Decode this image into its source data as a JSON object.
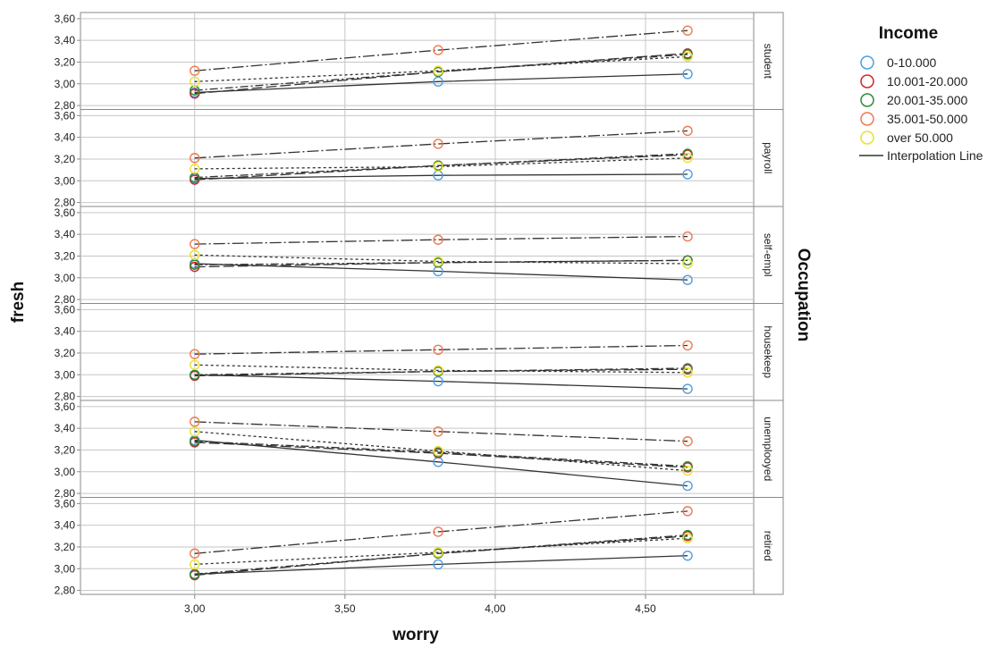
{
  "chart_data": {
    "type": "line",
    "xlabel": "worry",
    "ylabel": "fresh",
    "facet_label": "Occupation",
    "x": [
      3.0,
      3.81,
      4.64
    ],
    "x_ticks": [
      "3,00",
      "3,50",
      "4,00",
      "4,50"
    ],
    "x_tick_values": [
      3.0,
      3.5,
      4.0,
      4.5
    ],
    "xlim": [
      2.62,
      4.86
    ],
    "y_ticks": [
      "2,80",
      "3,00",
      "3,20",
      "3,40",
      "3,60"
    ],
    "y_tick_values": [
      2.8,
      3.0,
      3.2,
      3.4,
      3.6
    ],
    "ylim": [
      2.78,
      3.64
    ],
    "grid": true,
    "legend": {
      "title": "Income",
      "position": "right",
      "entries": [
        "0-10.000",
        "10.001-20.000",
        "20.001-35.000",
        "35.001-50.000",
        "over 50.000"
      ],
      "line_label": "Interpolation Line"
    },
    "panels": [
      {
        "label": "student",
        "series": [
          {
            "name": "0-10.000",
            "values": [
              2.92,
              3.02,
              3.09
            ]
          },
          {
            "name": "10.001-20.000",
            "values": [
              2.91,
              3.11,
              3.28
            ]
          },
          {
            "name": "20.001-35.000",
            "values": [
              2.94,
              3.11,
              3.27
            ]
          },
          {
            "name": "35.001-50.000",
            "values": [
              3.12,
              3.31,
              3.49
            ]
          },
          {
            "name": "over 50.000",
            "values": [
              3.02,
              3.12,
              3.25
            ]
          }
        ]
      },
      {
        "label": "payroll",
        "series": [
          {
            "name": "0-10.000",
            "values": [
              3.02,
              3.05,
              3.06
            ]
          },
          {
            "name": "10.001-20.000",
            "values": [
              3.01,
              3.14,
              3.24
            ]
          },
          {
            "name": "20.001-35.000",
            "values": [
              3.03,
              3.14,
              3.25
            ]
          },
          {
            "name": "35.001-50.000",
            "values": [
              3.21,
              3.34,
              3.46
            ]
          },
          {
            "name": "over 50.000",
            "values": [
              3.11,
              3.13,
              3.21
            ]
          }
        ]
      },
      {
        "label": "self-empl",
        "series": [
          {
            "name": "0-10.000",
            "values": [
              3.13,
              3.06,
              2.98
            ]
          },
          {
            "name": "10.001-20.000",
            "values": [
              3.1,
              3.14,
              3.16
            ]
          },
          {
            "name": "20.001-35.000",
            "values": [
              3.12,
              3.14,
              3.16
            ]
          },
          {
            "name": "35.001-50.000",
            "values": [
              3.31,
              3.35,
              3.38
            ]
          },
          {
            "name": "over 50.000",
            "values": [
              3.21,
              3.15,
              3.13
            ]
          }
        ]
      },
      {
        "label": "housekeep",
        "series": [
          {
            "name": "0-10.000",
            "values": [
              3.0,
              2.94,
              2.87
            ]
          },
          {
            "name": "10.001-20.000",
            "values": [
              2.99,
              3.03,
              3.05
            ]
          },
          {
            "name": "20.001-35.000",
            "values": [
              3.0,
              3.03,
              3.06
            ]
          },
          {
            "name": "35.001-50.000",
            "values": [
              3.19,
              3.23,
              3.27
            ]
          },
          {
            "name": "over 50.000",
            "values": [
              3.09,
              3.04,
              3.02
            ]
          }
        ]
      },
      {
        "label": "unemplooyed",
        "series": [
          {
            "name": "0-10.000",
            "values": [
              3.29,
              3.09,
              2.87
            ]
          },
          {
            "name": "10.001-20.000",
            "values": [
              3.27,
              3.17,
              3.04
            ]
          },
          {
            "name": "20.001-35.000",
            "values": [
              3.28,
              3.18,
              3.05
            ]
          },
          {
            "name": "35.001-50.000",
            "values": [
              3.46,
              3.37,
              3.28
            ]
          },
          {
            "name": "over 50.000",
            "values": [
              3.37,
              3.19,
              3.01
            ]
          }
        ]
      },
      {
        "label": "retired",
        "series": [
          {
            "name": "0-10.000",
            "values": [
              2.95,
              3.04,
              3.12
            ]
          },
          {
            "name": "10.001-20.000",
            "values": [
              2.94,
              3.14,
              3.3
            ]
          },
          {
            "name": "20.001-35.000",
            "values": [
              2.95,
              3.14,
              3.31
            ]
          },
          {
            "name": "35.001-50.000",
            "values": [
              3.14,
              3.34,
              3.53
            ]
          },
          {
            "name": "over 50.000",
            "values": [
              3.04,
              3.15,
              3.28
            ]
          }
        ]
      }
    ]
  },
  "colors": {
    "0-10.000": "#4f9ee3",
    "10.001-20.000": "#d1262c",
    "20.001-35.000": "#2e8b3a",
    "35.001-50.000": "#ef7a50",
    "over 50.000": "#e9e12e",
    "line": "#333333",
    "grid": "#c6c6c6",
    "frame": "#8a8a8a"
  },
  "line_styles": {
    "0-10.000": "solid",
    "10.001-20.000": "longdash",
    "20.001-35.000": "dashdot",
    "35.001-50.000": "dashdotlong",
    "over 50.000": "dotted"
  }
}
